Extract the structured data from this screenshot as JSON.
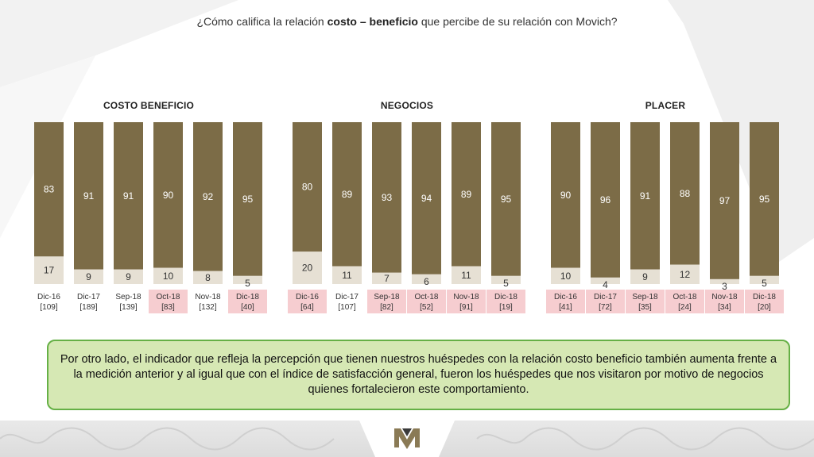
{
  "title": {
    "pre": "¿Cómo califica la relación ",
    "bold": "costo – beneficio",
    "post": " que percibe de su relación con Movich?"
  },
  "colors": {
    "top": "#7c6c47",
    "bottom": "#e6e0d4",
    "highlight": "#f6cdd0",
    "note_bg": "#d6e8b4",
    "note_border": "#66b046"
  },
  "chart_data": [
    {
      "type": "bar",
      "title": "COSTO BENEFICIO",
      "stacked": true,
      "ylim": [
        0,
        100
      ],
      "categories": [
        "Dic-16",
        "Dic-17",
        "Sep-18",
        "Oct-18",
        "Nov-18",
        "Dic-18"
      ],
      "bases": [
        "[109]",
        "[189]",
        "[139]",
        "[83]",
        "[132]",
        "[40]"
      ],
      "highlighted": [
        false,
        false,
        false,
        true,
        false,
        true
      ],
      "series": [
        {
          "values": [
            83,
            91,
            91,
            90,
            92,
            95
          ]
        },
        {
          "values": [
            17,
            9,
            9,
            10,
            8,
            5
          ]
        }
      ]
    },
    {
      "type": "bar",
      "title": "NEGOCIOS",
      "stacked": true,
      "ylim": [
        0,
        100
      ],
      "categories": [
        "Dic-16",
        "Dic-17",
        "Sep-18",
        "Oct-18",
        "Nov-18",
        "Dic-18"
      ],
      "bases": [
        "[64]",
        "[107]",
        "[82]",
        "[52]",
        "[91]",
        "[19]"
      ],
      "highlighted": [
        true,
        false,
        true,
        true,
        true,
        true
      ],
      "series": [
        {
          "values": [
            80,
            89,
            93,
            94,
            89,
            95
          ]
        },
        {
          "values": [
            20,
            11,
            7,
            6,
            11,
            5
          ]
        }
      ]
    },
    {
      "type": "bar",
      "title": "PLACER",
      "stacked": true,
      "ylim": [
        0,
        100
      ],
      "categories": [
        "Dic-16",
        "Dic-17",
        "Sep-18",
        "Oct-18",
        "Nov-18",
        "Dic-18"
      ],
      "bases": [
        "[41]",
        "[72]",
        "[35]",
        "[24]",
        "[34]",
        "[20]"
      ],
      "highlighted": [
        true,
        true,
        true,
        true,
        true,
        true
      ],
      "series": [
        {
          "values": [
            90,
            96,
            91,
            88,
            97,
            95
          ]
        },
        {
          "values": [
            10,
            4,
            9,
            12,
            3,
            5
          ]
        }
      ]
    }
  ],
  "note": {
    "text": "Por otro lado, el indicador que refleja la percepción que tienen nuestros huéspedes con la relación costo beneficio también aumenta frente a la medición anterior y al igual que con el índice de satisfacción general, fueron los huéspedes que nos visitaron por motivo de negocios quienes fortalecieron este comportamiento."
  }
}
